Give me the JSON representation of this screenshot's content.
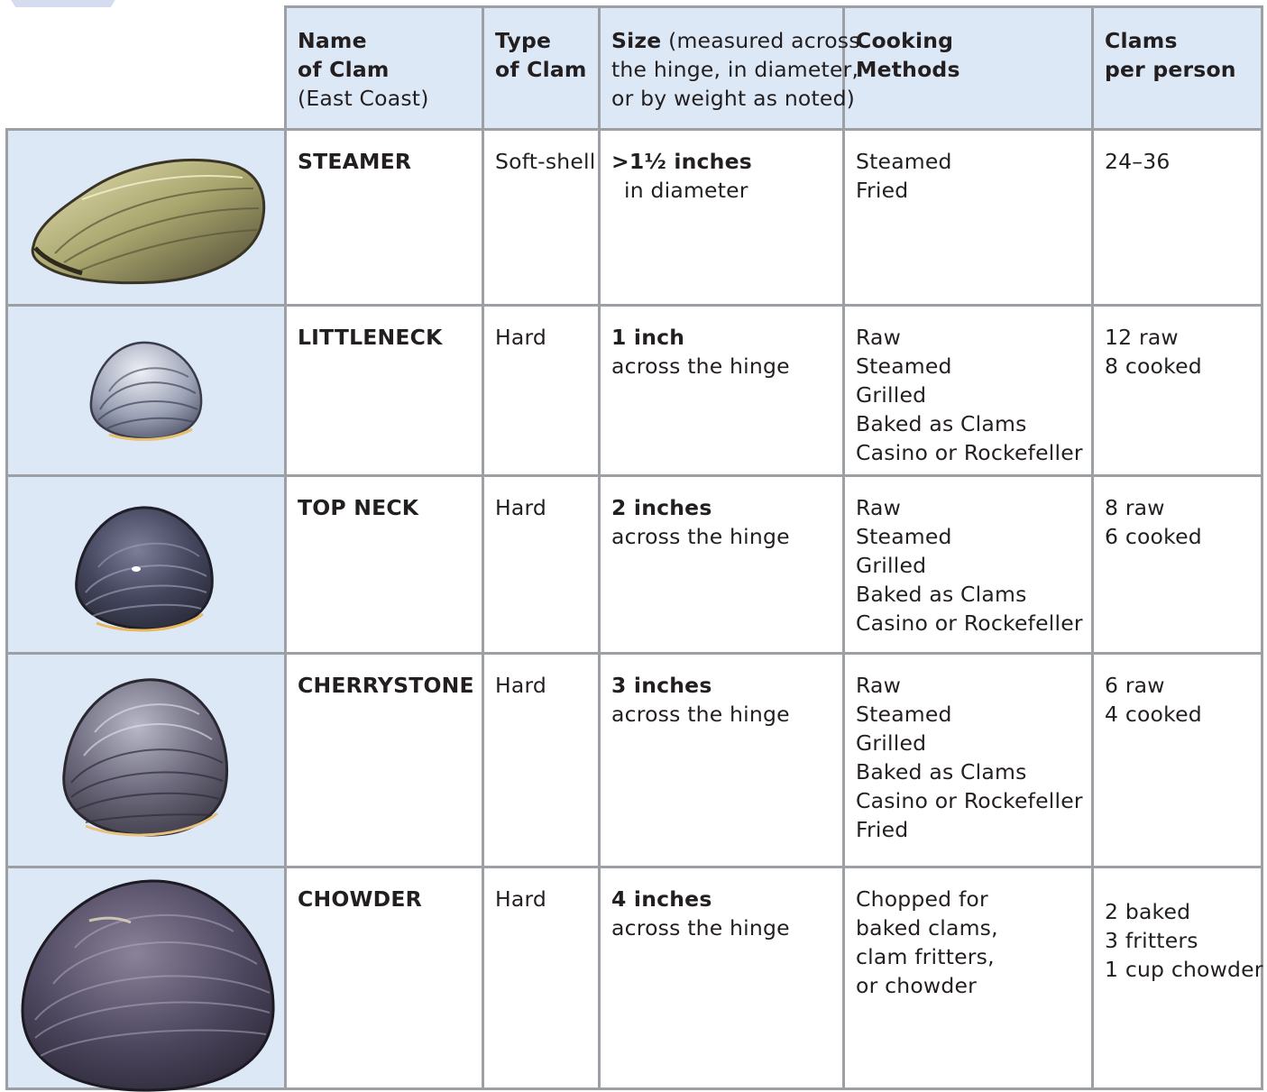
{
  "headers": {
    "name_lines": [
      "Name",
      "of Clam"
    ],
    "name_note": "(East Coast)",
    "type_lines": [
      "Type",
      "of Clam"
    ],
    "size_bold": "Size",
    "size_rest": "(measured across",
    "size_lines": [
      "the hinge, in diameter,",
      "or by weight as noted)"
    ],
    "cooking_lines": [
      "Cooking",
      "Methods"
    ],
    "per_person_lines": [
      "Clams",
      "per person"
    ]
  },
  "rows": [
    {
      "name": "STEAMER",
      "type": "Soft-shell",
      "size_main": ">1½ inches",
      "size_detail": "in diameter",
      "methods": [
        "Steamed",
        "Fried"
      ],
      "per_person": [
        "24–36"
      ]
    },
    {
      "name": "LITTLENECK",
      "type": "Hard",
      "size_main": "1 inch",
      "size_detail": "across the hinge",
      "methods": [
        "Raw",
        "Steamed",
        "Grilled",
        "Baked as Clams",
        "Casino or Rockefeller"
      ],
      "per_person": [
        "12 raw",
        "8 cooked"
      ]
    },
    {
      "name": "TOP NECK",
      "type": "Hard",
      "size_main": "2 inches",
      "size_detail": "across the hinge",
      "methods": [
        "Raw",
        "Steamed",
        "Grilled",
        "Baked as Clams",
        "Casino or Rockefeller"
      ],
      "per_person": [
        "8 raw",
        "6 cooked"
      ]
    },
    {
      "name": "CHERRYSTONE",
      "type": "Hard",
      "size_main": "3 inches",
      "size_detail": "across the hinge",
      "methods": [
        "Raw",
        "Steamed",
        "Grilled",
        "Baked as Clams",
        "Casino or Rockefeller",
        "Fried"
      ],
      "per_person": [
        "6 raw",
        "4 cooked"
      ]
    },
    {
      "name": "CHOWDER",
      "type": "Hard",
      "size_main": "4 inches",
      "size_detail": "across the hinge",
      "methods": [
        "Chopped for",
        "baked clams,",
        "clam fritters,",
        "or chowder"
      ],
      "per_person": [
        "2 baked",
        "3 fritters",
        "1 cup chowder"
      ]
    }
  ],
  "colors": {
    "header_bg": "#dde8f6",
    "grid": "#9c9fa3",
    "text": "#231f20"
  }
}
